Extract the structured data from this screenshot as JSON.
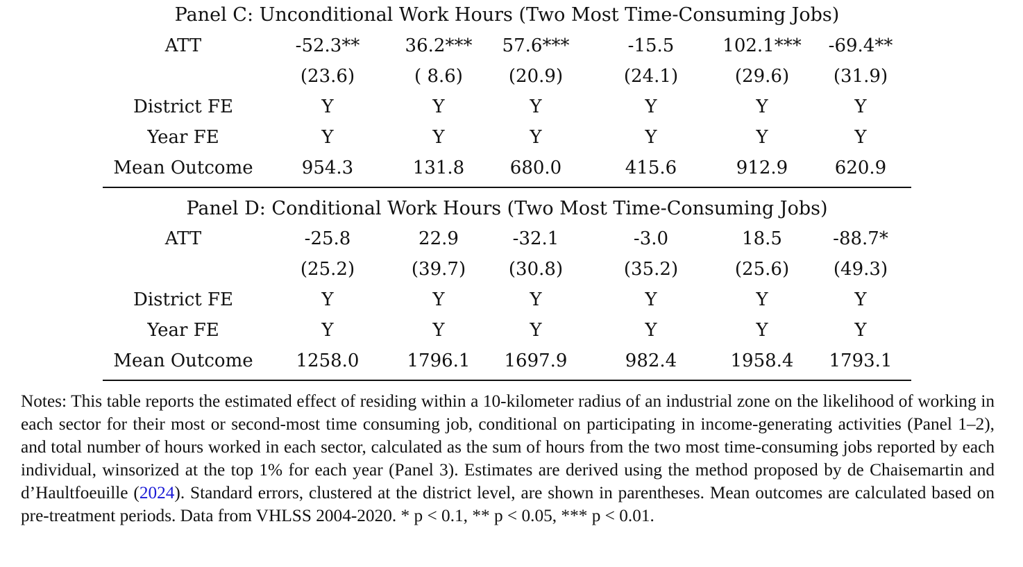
{
  "panel_c": {
    "title": "Panel C: Unconditional Work Hours (Two Most Time-Consuming Jobs)",
    "rows": [
      {
        "label": "ATT",
        "values": [
          "-52.3**",
          "36.2***",
          "57.6***",
          "-15.5",
          "102.1***",
          "-69.4**"
        ]
      },
      {
        "label": "",
        "values": [
          "(23.6)",
          "( 8.6)",
          "(20.9)",
          "(24.1)",
          "(29.6)",
          "(31.9)"
        ]
      },
      {
        "label": "District FE",
        "values": [
          "Y",
          "Y",
          "Y",
          "Y",
          "Y",
          "Y"
        ]
      },
      {
        "label": "Year FE",
        "values": [
          "Y",
          "Y",
          "Y",
          "Y",
          "Y",
          "Y"
        ]
      },
      {
        "label": "Mean Outcome",
        "values": [
          "954.3",
          "131.8",
          "680.0",
          "415.6",
          "912.9",
          "620.9"
        ]
      }
    ]
  },
  "panel_d": {
    "title": "Panel D: Conditional Work Hours (Two Most Time-Consuming Jobs)",
    "rows": [
      {
        "label": "ATT",
        "values": [
          "-25.8",
          "22.9",
          "-32.1",
          "-3.0",
          "18.5",
          "-88.7*"
        ]
      },
      {
        "label": "",
        "values": [
          "(25.2)",
          "(39.7)",
          "(30.8)",
          "(35.2)",
          "(25.6)",
          "(49.3)"
        ]
      },
      {
        "label": "District FE",
        "values": [
          "Y",
          "Y",
          "Y",
          "Y",
          "Y",
          "Y"
        ]
      },
      {
        "label": "Year FE",
        "values": [
          "Y",
          "Y",
          "Y",
          "Y",
          "Y",
          "Y"
        ]
      },
      {
        "label": "Mean Outcome",
        "values": [
          "1258.0",
          "1796.1",
          "1697.9",
          "982.4",
          "1958.4",
          "1793.1"
        ]
      }
    ]
  },
  "notes": {
    "text_before_citation": "Notes: This table reports the estimated effect of residing within a 10-kilometer radius of an industrial zone on the likelihood of working in each sector for their most or second-most time consuming job, conditional on participating in income-generating activities (Panel 1–2), and total number of hours worked in each sector, calculated as the sum of hours from the two most time-consuming jobs reported by each individual, winsorized at the top 1% for each year (Panel 3). Estimates are derived using the method proposed by de Chaisemartin and d’Haultfoeuille (",
    "citation_year": "2024",
    "text_after_citation": "). Standard errors, clustered at the district level, are shown in parentheses. Mean outcomes are calculated based on pre-treatment periods. Data from VHLSS 2004-2020. * p < 0.1, ** p < 0.05, *** p < 0.01.",
    "citation_color": "#1a1ad6"
  }
}
